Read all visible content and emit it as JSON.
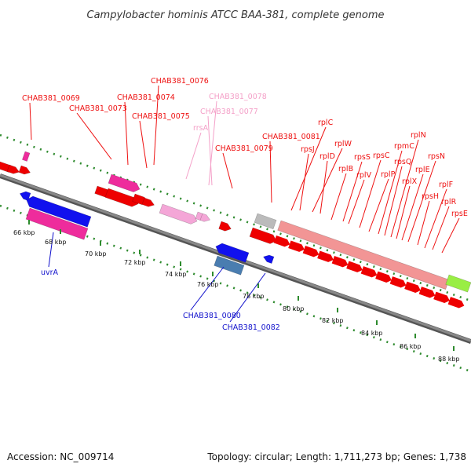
{
  "title": "Campylobacter hominis ATCC BAA-381, complete genome",
  "footer": {
    "accession": "Accession: NC_009714",
    "summary": "Topology: circular; Length: 1,711,273 bp; Genes: 1,738"
  },
  "colors": {
    "backbone": "#888888",
    "dotted_ring": "#2e8b2e",
    "label_red": "#ee1111",
    "label_pink": "#f4a0c8",
    "label_blue": "#1111cc",
    "cds_red": "#ee0000",
    "cds_pink": "#ee2c9c",
    "rrna_pink": "#f4a6d7",
    "blue_feature": "#1111ee",
    "grey_feature": "#bbbbbb",
    "green_feature": "#99ee44",
    "salmon_block": "#f29595"
  },
  "ticks": [
    {
      "label": "66 kbp"
    },
    {
      "label": "68 kbp"
    },
    {
      "label": "70 kbp"
    },
    {
      "label": "72 kbp"
    },
    {
      "label": "74 kbp"
    },
    {
      "label": "76 kbp"
    },
    {
      "label": "78 kbp"
    },
    {
      "label": "80 kbp"
    },
    {
      "label": "82 kbp"
    },
    {
      "label": "84 kbp"
    },
    {
      "label": "86 kbp"
    },
    {
      "label": "88 kbp"
    }
  ],
  "labels": [
    {
      "text": "CHAB381_0069",
      "color": "red"
    },
    {
      "text": "CHAB381_0073",
      "color": "red"
    },
    {
      "text": "CHAB381_0074",
      "color": "red"
    },
    {
      "text": "CHAB381_0075",
      "color": "red"
    },
    {
      "text": "CHAB381_0076",
      "color": "red"
    },
    {
      "text": "CHAB381_0078",
      "color": "pink"
    },
    {
      "text": "CHAB381_0077",
      "color": "pink"
    },
    {
      "text": "rrsA",
      "color": "pink"
    },
    {
      "text": "CHAB381_0079",
      "color": "red"
    },
    {
      "text": "CHAB381_0081",
      "color": "red"
    },
    {
      "text": "rplC",
      "color": "red"
    },
    {
      "text": "rpsJ",
      "color": "red"
    },
    {
      "text": "rplW",
      "color": "red"
    },
    {
      "text": "rplD",
      "color": "red"
    },
    {
      "text": "rplB",
      "color": "red"
    },
    {
      "text": "rpsS",
      "color": "red"
    },
    {
      "text": "rplV",
      "color": "red"
    },
    {
      "text": "rpsC",
      "color": "red"
    },
    {
      "text": "rplP",
      "color": "red"
    },
    {
      "text": "rpmC",
      "color": "red"
    },
    {
      "text": "rpsQ",
      "color": "red"
    },
    {
      "text": "rplN",
      "color": "red"
    },
    {
      "text": "rplX",
      "color": "red"
    },
    {
      "text": "rplE",
      "color": "red"
    },
    {
      "text": "rpsN",
      "color": "red"
    },
    {
      "text": "rpsH",
      "color": "red"
    },
    {
      "text": "rplF",
      "color": "red"
    },
    {
      "text": "rplR",
      "color": "red"
    },
    {
      "text": "rpsE",
      "color": "red"
    },
    {
      "text": "uvrA",
      "color": "blue"
    },
    {
      "text": "CHAB381_0080",
      "color": "blue"
    },
    {
      "text": "CHAB381_0082",
      "color": "blue"
    }
  ]
}
